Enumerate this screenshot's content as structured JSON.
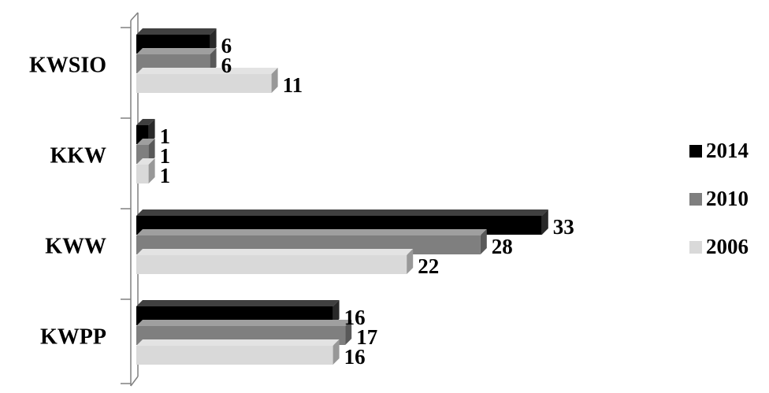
{
  "chart_data": {
    "type": "bar",
    "orientation": "horizontal",
    "style": "3d",
    "categories": [
      "KWSIO",
      "KKW",
      "KWW",
      "KWPP"
    ],
    "series": [
      {
        "name": "2014",
        "values": [
          6,
          1,
          33,
          16
        ],
        "color": "#000000"
      },
      {
        "name": "2010",
        "values": [
          6,
          1,
          28,
          17
        ],
        "color": "#7f7f7f"
      },
      {
        "name": "2006",
        "values": [
          11,
          1,
          22,
          16
        ],
        "color": "#d9d9d9"
      }
    ],
    "xlim": [
      0,
      35
    ],
    "grid": false,
    "legend": "right"
  }
}
